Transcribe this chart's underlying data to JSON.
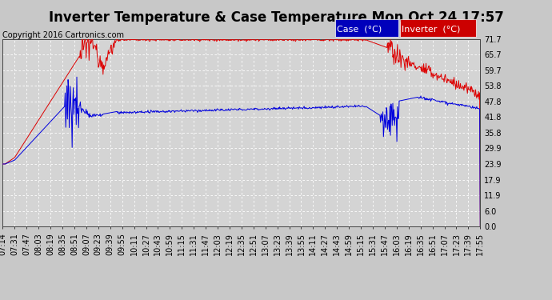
{
  "title": "Inverter Temperature & Case Temperature Mon Oct 24 17:57",
  "copyright": "Copyright 2016 Cartronics.com",
  "legend_case_label": "Case  (°C)",
  "legend_inverter_label": "Inverter  (°C)",
  "case_color": "#0000dd",
  "inverter_color": "#dd0000",
  "legend_case_bg": "#0000bb",
  "legend_inverter_bg": "#cc0000",
  "background_color": "#c8c8c8",
  "plot_bg_color": "#d4d4d4",
  "grid_color": "#ffffff",
  "yticks": [
    0.0,
    6.0,
    11.9,
    17.9,
    23.9,
    29.9,
    35.8,
    41.8,
    47.8,
    53.8,
    59.7,
    65.7,
    71.7
  ],
  "ylim": [
    0.0,
    71.7
  ],
  "xtick_labels": [
    "07:14",
    "07:31",
    "07:47",
    "08:03",
    "08:19",
    "08:35",
    "08:51",
    "09:07",
    "09:23",
    "09:39",
    "09:55",
    "10:11",
    "10:27",
    "10:43",
    "10:59",
    "11:15",
    "11:31",
    "11:47",
    "12:03",
    "12:19",
    "12:35",
    "12:51",
    "13:07",
    "13:23",
    "13:39",
    "13:55",
    "14:11",
    "14:27",
    "14:43",
    "14:59",
    "15:15",
    "15:31",
    "15:47",
    "16:03",
    "16:19",
    "16:35",
    "16:51",
    "17:07",
    "17:23",
    "17:39",
    "17:55"
  ],
  "title_fontsize": 12,
  "copyright_fontsize": 7,
  "tick_fontsize": 7,
  "legend_fontsize": 8
}
